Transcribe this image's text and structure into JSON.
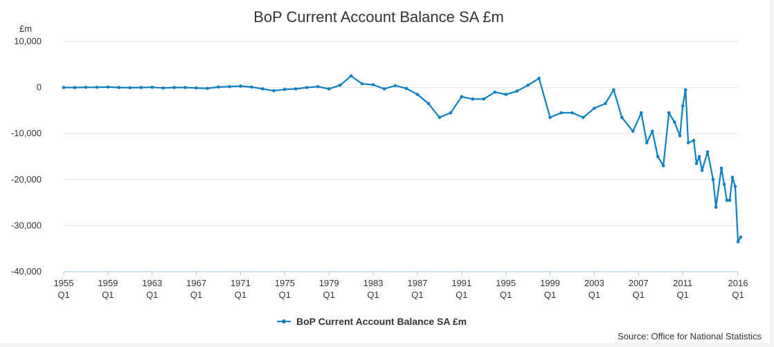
{
  "chart_data": {
    "type": "line",
    "title": "BoP Current Account Balance SA £m",
    "ylabel": "£m",
    "xlabel": "",
    "ylim": [
      -40000,
      10000
    ],
    "xlim": [
      1955.0,
      2016.0
    ],
    "y_ticks": [
      10000,
      0,
      -10000,
      -20000,
      -30000,
      -40000
    ],
    "y_tick_labels": [
      "10,000",
      "0",
      "-10,000",
      "-20,000",
      "-30,000",
      "-40,000"
    ],
    "x_ticks": [
      {
        "year": 1955,
        "label": "1955",
        "quarter": "Q1"
      },
      {
        "year": 1959,
        "label": "1959",
        "quarter": "Q1"
      },
      {
        "year": 1963,
        "label": "1963",
        "quarter": "Q1"
      },
      {
        "year": 1967,
        "label": "1967",
        "quarter": "Q1"
      },
      {
        "year": 1971,
        "label": "1971",
        "quarter": "Q1"
      },
      {
        "year": 1975,
        "label": "1975",
        "quarter": "Q1"
      },
      {
        "year": 1979,
        "label": "1979",
        "quarter": "Q1"
      },
      {
        "year": 1983,
        "label": "1983",
        "quarter": "Q1"
      },
      {
        "year": 1987,
        "label": "1987",
        "quarter": "Q1"
      },
      {
        "year": 1991,
        "label": "1991",
        "quarter": "Q1"
      },
      {
        "year": 1995,
        "label": "1995",
        "quarter": "Q1"
      },
      {
        "year": 1999,
        "label": "1999",
        "quarter": "Q1"
      },
      {
        "year": 2003,
        "label": "2003",
        "quarter": "Q1"
      },
      {
        "year": 2007,
        "label": "2007",
        "quarter": "Q1"
      },
      {
        "year": 2011,
        "label": "2011",
        "quarter": "Q1"
      },
      {
        "year": 2016,
        "label": "2016",
        "quarter": "Q1"
      }
    ],
    "grid": true,
    "legend_position": "bottom-center",
    "series": [
      {
        "name": "BoP Current Account Balance SA £m",
        "color": "#0a80c3",
        "points": [
          [
            1955.0,
            0
          ],
          [
            1956.0,
            0
          ],
          [
            1957.0,
            50
          ],
          [
            1958.0,
            50
          ],
          [
            1959.0,
            100
          ],
          [
            1960.0,
            0
          ],
          [
            1961.0,
            -50
          ],
          [
            1962.0,
            0
          ],
          [
            1963.0,
            50
          ],
          [
            1964.0,
            -100
          ],
          [
            1965.0,
            0
          ],
          [
            1966.0,
            0
          ],
          [
            1967.0,
            -100
          ],
          [
            1968.0,
            -200
          ],
          [
            1969.0,
            100
          ],
          [
            1970.0,
            200
          ],
          [
            1971.0,
            300
          ],
          [
            1972.0,
            100
          ],
          [
            1973.0,
            -300
          ],
          [
            1974.0,
            -700
          ],
          [
            1975.0,
            -400
          ],
          [
            1976.0,
            -300
          ],
          [
            1977.0,
            0
          ],
          [
            1978.0,
            200
          ],
          [
            1979.0,
            -300
          ],
          [
            1980.0,
            500
          ],
          [
            1981.0,
            2500
          ],
          [
            1982.0,
            800
          ],
          [
            1983.0,
            600
          ],
          [
            1984.0,
            -300
          ],
          [
            1985.0,
            400
          ],
          [
            1986.0,
            -200
          ],
          [
            1987.0,
            -1500
          ],
          [
            1988.0,
            -3500
          ],
          [
            1989.0,
            -6500
          ],
          [
            1990.0,
            -5500
          ],
          [
            1991.0,
            -2000
          ],
          [
            1992.0,
            -2500
          ],
          [
            1993.0,
            -2500
          ],
          [
            1994.0,
            -1000
          ],
          [
            1995.0,
            -1500
          ],
          [
            1996.0,
            -800
          ],
          [
            1997.0,
            500
          ],
          [
            1998.0,
            2000
          ],
          [
            1999.0,
            -6500
          ],
          [
            2000.0,
            -5500
          ],
          [
            2001.0,
            -5500
          ],
          [
            2002.0,
            -6500
          ],
          [
            2003.0,
            -4500
          ],
          [
            2004.0,
            -3500
          ],
          [
            2004.75,
            -500
          ],
          [
            2005.5,
            -6500
          ],
          [
            2006.5,
            -9500
          ],
          [
            2007.25,
            -5500
          ],
          [
            2007.75,
            -12000
          ],
          [
            2008.25,
            -9500
          ],
          [
            2008.75,
            -15000
          ],
          [
            2009.25,
            -17000
          ],
          [
            2009.75,
            -5500
          ],
          [
            2010.25,
            -7500
          ],
          [
            2010.75,
            -10500
          ],
          [
            2011.0,
            -4000
          ],
          [
            2011.25,
            -500
          ],
          [
            2011.5,
            -12000
          ],
          [
            2012.0,
            -11500
          ],
          [
            2012.25,
            -16500
          ],
          [
            2012.5,
            -15000
          ],
          [
            2012.75,
            -18000
          ],
          [
            2013.25,
            -14000
          ],
          [
            2013.75,
            -20000
          ],
          [
            2014.0,
            -26000
          ],
          [
            2014.5,
            -17500
          ],
          [
            2014.75,
            -21000
          ],
          [
            2015.0,
            -24500
          ],
          [
            2015.25,
            -24500
          ],
          [
            2015.5,
            -19500
          ],
          [
            2015.75,
            -21500
          ],
          [
            2016.0,
            -33500
          ],
          [
            2016.25,
            -32500
          ]
        ]
      }
    ]
  },
  "footer": {
    "source": "Source: Office for National Statistics"
  }
}
